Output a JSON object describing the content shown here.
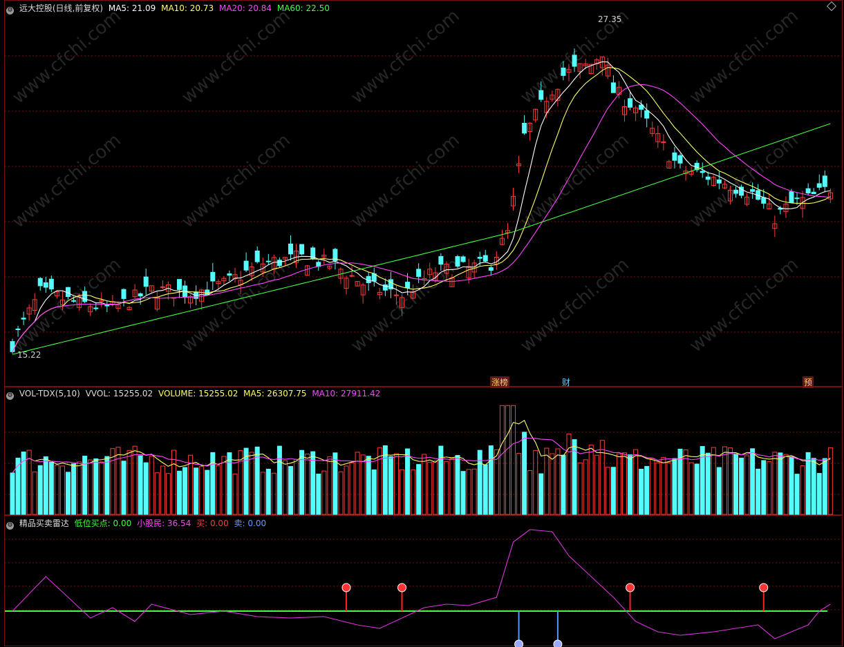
{
  "main": {
    "title": "远大控股(日线,前复权)",
    "ma_labels": [
      {
        "text": "MA5: 21.09",
        "color": "#ffffff"
      },
      {
        "text": "MA10: 20.73",
        "color": "#ffff66"
      },
      {
        "text": "MA20: 20.84",
        "color": "#ff44ff"
      },
      {
        "text": "MA60: 22.50",
        "color": "#44ff44"
      }
    ],
    "high_label": "27.35",
    "low_label": "15.22",
    "markers": [
      "涨榜",
      "财",
      "预"
    ]
  },
  "volume": {
    "title": "VOL-TDX(5,10)",
    "vvol": "VVOL: 15255.02",
    "volume": "VOLUME: 15255.02",
    "ma5": "MA5: 26307.75",
    "ma10": "MA10: 27911.42"
  },
  "indicator": {
    "title": "精品买卖雷达",
    "low_buy": "低位买点: 0.00",
    "small_investor": "小股民: 36.54",
    "buy": "买: 0.00",
    "sell": "卖: 0.00"
  },
  "watermark": "www.cfchi.com",
  "colors": {
    "up": "#ff3b3b",
    "down": "#54fcfc",
    "ma5": "#ffffff",
    "ma10": "#ffff66",
    "ma20": "#ff44ff",
    "ma60": "#44ff44",
    "grid": "#7a1010"
  }
}
